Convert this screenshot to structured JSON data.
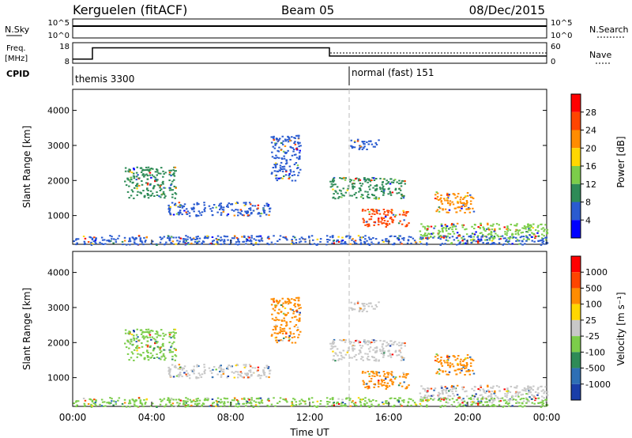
{
  "header": {
    "title": "Kerguelen (fitACF)",
    "beam": "Beam 05",
    "date": "08/Dec/2015"
  },
  "top_panels": {
    "nsky_label": "N.Sky",
    "nsky_ticks": [
      "10^5",
      "10^0"
    ],
    "nsearch_label": "N.Search",
    "nsearch_ticks": [
      "10^5",
      "10^0"
    ],
    "freq_label": "Freq.",
    "freq_unit": "[MHz]",
    "freq_ticks": [
      "18",
      "8"
    ],
    "nave_label": "Nave",
    "nave_ticks": [
      "60",
      "0"
    ],
    "cpid_label": "CPID",
    "cpid_segments": [
      {
        "label": "themis 3300",
        "start_hour": 0
      },
      {
        "label": "normal (fast) 151",
        "start_hour": 14
      }
    ],
    "freq_steps": [
      {
        "start_hour": 0,
        "end_hour": 1,
        "level": 0.2
      },
      {
        "start_hour": 1,
        "end_hour": 13,
        "level": 0.75
      },
      {
        "start_hour": 13,
        "end_hour": 24,
        "level": 0.35
      }
    ]
  },
  "chart_data": [
    {
      "type": "heatmap",
      "name": "Power",
      "ylabel": "Slant Range [km]",
      "ylim": [
        180,
        4600
      ],
      "xlim": [
        0,
        24
      ],
      "yticks": [
        1000,
        2000,
        3000,
        4000
      ],
      "colorbar": {
        "label": "Power [dB]",
        "ticks": [
          "28",
          "24",
          "20",
          "16",
          "12",
          "8",
          "4"
        ],
        "colors": [
          "#0000ff",
          "#2a5bd0",
          "#2e8b57",
          "#7ccd4a",
          "#ffd700",
          "#ff8c00",
          "#ff4500",
          "#ff0000"
        ]
      },
      "echo_regions": [
        {
          "t0": 2.6,
          "t1": 5.2,
          "r0": 1500,
          "r1": 2400,
          "color": "#2e8b57"
        },
        {
          "t0": 4.8,
          "t1": 10.0,
          "r0": 1000,
          "r1": 1400,
          "color": "#2a5bd0"
        },
        {
          "t0": 10.0,
          "t1": 11.5,
          "r0": 2000,
          "r1": 3300,
          "color": "#2a5bd0"
        },
        {
          "t0": 13.0,
          "t1": 16.8,
          "r0": 1500,
          "r1": 2100,
          "color": "#2e8b57"
        },
        {
          "t0": 14.5,
          "t1": 17.0,
          "r0": 700,
          "r1": 1200,
          "color": "#ff4500"
        },
        {
          "t0": 14.0,
          "t1": 15.5,
          "r0": 2900,
          "r1": 3200,
          "color": "#2a5bd0"
        },
        {
          "t0": 18.3,
          "t1": 20.3,
          "r0": 1100,
          "r1": 1700,
          "color": "#ff8c00"
        },
        {
          "t0": 17.5,
          "t1": 24.0,
          "r0": 300,
          "r1": 800,
          "color": "#7ccd4a"
        },
        {
          "t0": 0.0,
          "t1": 24.0,
          "r0": 180,
          "r1": 450,
          "color": "#2a5bd0"
        }
      ]
    },
    {
      "type": "heatmap",
      "name": "Velocity",
      "ylabel": "Slant Range [km]",
      "ylim": [
        180,
        4600
      ],
      "xlim": [
        0,
        24
      ],
      "yticks": [
        1000,
        2000,
        3000,
        4000
      ],
      "xticks": [
        "00:00",
        "04:00",
        "08:00",
        "12:00",
        "16:00",
        "20:00",
        "00:00"
      ],
      "xlabel": "Time UT",
      "colorbar": {
        "label": "Velocity [m s⁻¹]",
        "ticks": [
          "1000",
          "500",
          "100",
          "25",
          "-25",
          "-100",
          "-500",
          "-1000"
        ],
        "colors": [
          "#1a3ea8",
          "#2e6fb5",
          "#2e8b57",
          "#7ccd4a",
          "#c8c8c8",
          "#ffd700",
          "#ff8c00",
          "#ff4500",
          "#ff0000"
        ]
      },
      "echo_regions": [
        {
          "t0": 2.6,
          "t1": 5.2,
          "r0": 1500,
          "r1": 2400,
          "color": "#7ccd4a"
        },
        {
          "t0": 4.8,
          "t1": 10.0,
          "r0": 1000,
          "r1": 1400,
          "color": "#c8c8c8"
        },
        {
          "t0": 10.0,
          "t1": 11.5,
          "r0": 2000,
          "r1": 3300,
          "color": "#ff8c00"
        },
        {
          "t0": 13.0,
          "t1": 16.8,
          "r0": 1500,
          "r1": 2100,
          "color": "#c8c8c8"
        },
        {
          "t0": 14.5,
          "t1": 17.0,
          "r0": 700,
          "r1": 1200,
          "color": "#ff8c00"
        },
        {
          "t0": 14.0,
          "t1": 15.5,
          "r0": 2900,
          "r1": 3200,
          "color": "#c8c8c8"
        },
        {
          "t0": 18.3,
          "t1": 20.3,
          "r0": 1100,
          "r1": 1700,
          "color": "#ff8c00"
        },
        {
          "t0": 17.5,
          "t1": 24.0,
          "r0": 300,
          "r1": 800,
          "color": "#c8c8c8"
        },
        {
          "t0": 0.0,
          "t1": 24.0,
          "r0": 180,
          "r1": 450,
          "color": "#7ccd4a"
        }
      ]
    }
  ]
}
